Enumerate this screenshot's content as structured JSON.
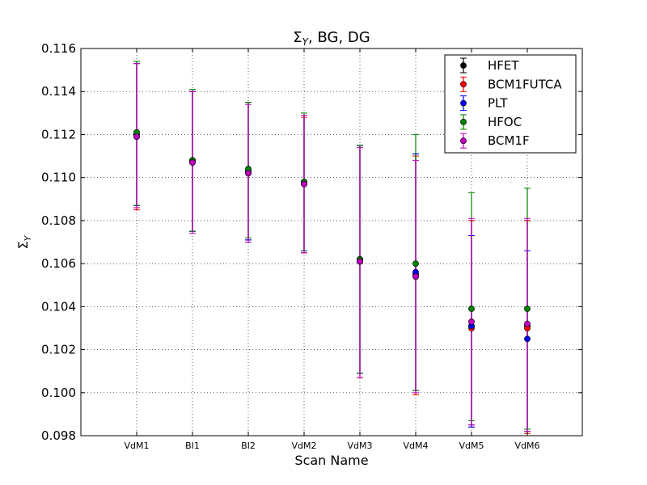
{
  "chart_data": {
    "type": "scatter",
    "title": "Σᵧ, BG, DG",
    "title_parts": {
      "symbol": "Σ",
      "subscript": "Y",
      "rest": ", BG, DG"
    },
    "xlabel": "Scan Name",
    "ylabel": "Σᵧ",
    "ylabel_parts": {
      "symbol": "Σ",
      "subscript": "Y"
    },
    "categories": [
      "VdM1",
      "BI1",
      "BI2",
      "VdM2",
      "VdM3",
      "VdM4",
      "VdM5",
      "VdM6"
    ],
    "ylim": [
      0.098,
      0.116
    ],
    "yticks": [
      "0.098",
      "0.100",
      "0.102",
      "0.104",
      "0.106",
      "0.108",
      "0.110",
      "0.112",
      "0.114",
      "0.116"
    ],
    "grid": true,
    "legend_position": "top-right",
    "series": [
      {
        "name": "HFET",
        "color": "#000000",
        "values": [
          0.112,
          0.1108,
          0.1103,
          0.1097,
          0.1061,
          0.1055,
          0.1031,
          0.1031
        ],
        "lower": [
          0.1087,
          0.1075,
          0.1071,
          0.1065,
          0.1009,
          0.1001,
          0.0985,
          0.0982
        ],
        "upper": [
          0.1154,
          0.114,
          0.1135,
          0.1129,
          0.1115,
          0.1111,
          0.108,
          0.108
        ]
      },
      {
        "name": "BCM1FUTCA",
        "color": "#ff0000",
        "values": [
          0.1119,
          0.1107,
          0.1102,
          0.1097,
          0.1061,
          0.1054,
          0.103,
          0.103
        ],
        "lower": [
          0.1085,
          0.1075,
          0.107,
          0.1065,
          0.1007,
          0.0999,
          0.0984,
          0.0981
        ],
        "upper": [
          0.1153,
          0.114,
          0.1135,
          0.1128,
          0.1115,
          0.111,
          0.108,
          0.108
        ]
      },
      {
        "name": "PLT",
        "color": "#0000ff",
        "values": [
          0.112,
          0.1108,
          0.1103,
          0.1098,
          0.1062,
          0.1056,
          0.1031,
          0.1025
        ],
        "lower": [
          0.1087,
          0.1075,
          0.1071,
          0.1066,
          0.1009,
          0.1001,
          0.0984,
          0.0983
        ],
        "upper": [
          0.1153,
          0.114,
          0.1135,
          0.1129,
          0.1115,
          0.1111,
          0.1073,
          0.1066
        ]
      },
      {
        "name": "HFOC",
        "color": "#008000",
        "values": [
          0.1121,
          0.1108,
          0.1104,
          0.1098,
          0.1062,
          0.106,
          0.1039,
          0.1039
        ],
        "lower": [
          0.1087,
          0.1075,
          0.1072,
          0.1066,
          0.1009,
          0.1001,
          0.0987,
          0.0983
        ],
        "upper": [
          0.1154,
          0.1141,
          0.1135,
          0.113,
          0.1115,
          0.112,
          0.1093,
          0.1095
        ]
      },
      {
        "name": "BCM1F",
        "color": "#bf00bf",
        "values": [
          0.1119,
          0.1107,
          0.1102,
          0.1097,
          0.1061,
          0.1054,
          0.1033,
          0.1032
        ],
        "lower": [
          0.1086,
          0.1074,
          0.107,
          0.1065,
          0.1007,
          0.1,
          0.0985,
          0.0982
        ],
        "upper": [
          0.1153,
          0.114,
          0.1134,
          0.1129,
          0.1114,
          0.1108,
          0.1081,
          0.1081
        ]
      }
    ]
  }
}
